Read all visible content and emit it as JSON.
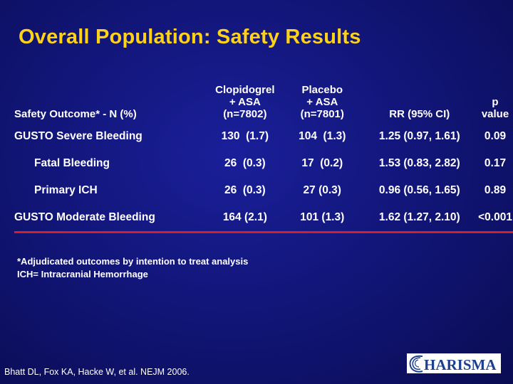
{
  "title": "Overall Population: Safety Results",
  "table": {
    "headers": [
      "Safety Outcome* - N (%)",
      "Clopidogrel\n+ ASA\n(n=7802)",
      "Placebo\n+ ASA\n(n=7801)",
      "RR (95% CI)",
      "p value"
    ],
    "rows": [
      [
        "GUSTO Severe Bleeding",
        "130  (1.7)",
        "104  (1.3)",
        "1.25 (0.97, 1.61)",
        "0.09"
      ],
      [
        "Fatal Bleeding",
        "26  (0.3)",
        "17  (0.2)",
        "1.53 (0.83, 2.82)",
        "0.17"
      ],
      [
        "Primary ICH",
        "26  (0.3)",
        "27 (0.3)",
        "0.96 (0.56, 1.65)",
        "0.89"
      ],
      [
        "GUSTO Moderate Bleeding",
        "164 (2.1)",
        "101 (1.3)",
        "1.62 (1.27, 2.10)",
        "<0.001"
      ]
    ]
  },
  "footnote": [
    "*Adjudicated outcomes by intention to treat analysis",
    "ICH= Intracranial Hemorrhage"
  ],
  "citation": "Bhatt DL, Fox KA, Hacke W, et al. NEJM 2006.",
  "logo_text": "HARISMA",
  "colors": {
    "title": "#ffd21a",
    "underline": "#d0202a",
    "logo": "#1c3f8f"
  }
}
